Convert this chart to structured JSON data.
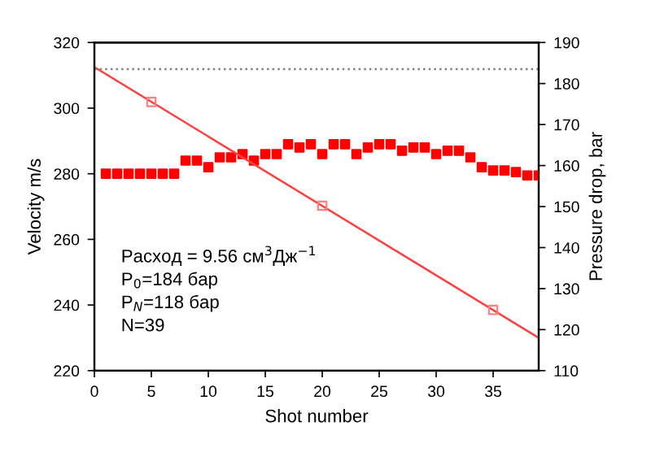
{
  "chart_data": {
    "type": "scatter",
    "xlabel": "Shot number",
    "ylabel": "Velocity m/s",
    "y2label": "Pressure drop, bar",
    "xlim": [
      0,
      39
    ],
    "xticks": [
      0,
      5,
      10,
      15,
      20,
      25,
      30,
      35
    ],
    "ylim": [
      220,
      320
    ],
    "yticks": [
      220,
      240,
      260,
      280,
      300,
      320
    ],
    "y2lim": [
      110,
      190
    ],
    "y2ticks": [
      110,
      120,
      130,
      140,
      150,
      160,
      170,
      180,
      190
    ],
    "grid": false,
    "legend": false,
    "series": [
      {
        "marker": "square",
        "color": "#ff0000",
        "x": [
          1,
          2,
          3,
          4,
          5,
          6,
          7,
          8,
          9,
          10,
          11,
          12,
          13,
          14,
          15,
          16,
          17,
          18,
          19,
          20,
          21,
          22,
          23,
          24,
          25,
          26,
          27,
          28,
          29,
          30,
          31,
          32,
          33,
          34,
          35,
          36,
          37,
          38,
          39
        ],
        "values": [
          280,
          280,
          280,
          280,
          280,
          280,
          280,
          284,
          284,
          282,
          285,
          285,
          286,
          284,
          286,
          286,
          289,
          288,
          289,
          286,
          289,
          289,
          286,
          288,
          289,
          289,
          287,
          288,
          288,
          286,
          287,
          287,
          285,
          282,
          281,
          281,
          280.5,
          279.5,
          279.5
        ]
      },
      {
        "type": "line",
        "marker": "none",
        "axis": "y2",
        "color": "#ff4040",
        "x": [
          0,
          39
        ],
        "values": [
          184,
          118
        ]
      },
      {
        "type": "scatter",
        "marker": "square",
        "axis": "y2",
        "color": "#ff8080",
        "x": [
          5,
          20,
          35
        ],
        "values": [
          175.5,
          150.2,
          124.8
        ]
      }
    ],
    "ref_lines": [
      {
        "axis": "y2",
        "value": 183.5,
        "color": "#808080",
        "line_style": "dotted"
      }
    ],
    "annotations": [
      "Расход = 9.56 см$^{3}$Дж$^{−1}$",
      "P$_{0}$=184 бар",
      "P$_{N}$=118 бар",
      "N=39"
    ]
  }
}
